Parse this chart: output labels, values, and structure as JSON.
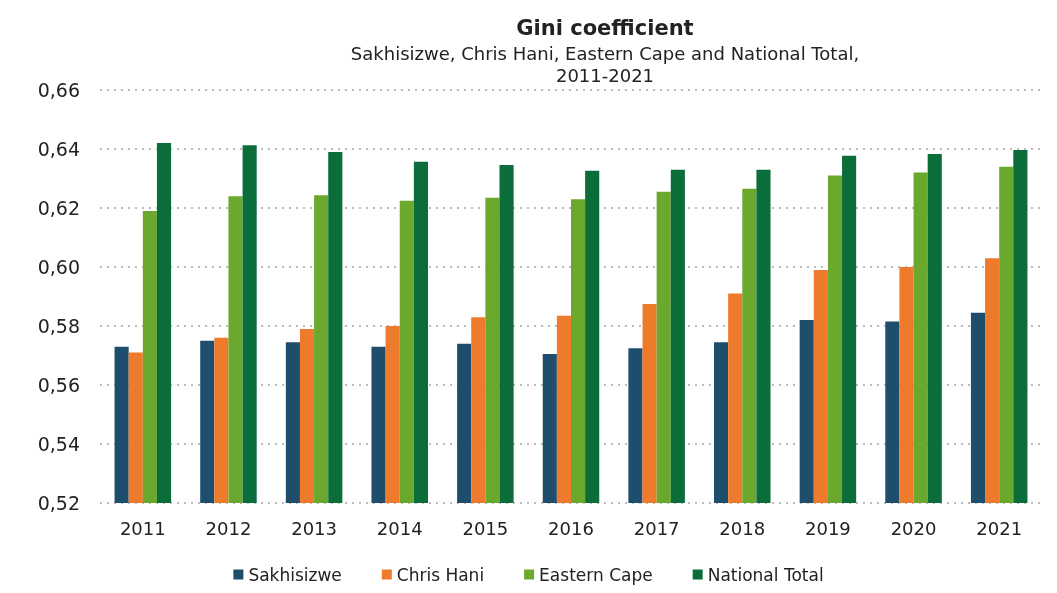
{
  "chart_data": {
    "type": "bar",
    "title": "Gini coefficient",
    "subtitle": "Sakhisizwe, Chris Hani, Eastern Cape and National Total,\n2011-2021",
    "categories": [
      "2011",
      "2012",
      "2013",
      "2014",
      "2015",
      "2016",
      "2017",
      "2018",
      "2019",
      "2020",
      "2021"
    ],
    "series": [
      {
        "name": "Sakhisizwe",
        "color": "#1e4e6c",
        "values": [
          0.573,
          0.575,
          0.5745,
          0.573,
          0.574,
          0.5705,
          0.5725,
          0.5745,
          0.582,
          0.5815,
          0.5845
        ]
      },
      {
        "name": "Chris Hani",
        "color": "#ee7b2c",
        "values": [
          0.571,
          0.576,
          0.579,
          0.58,
          0.583,
          0.5835,
          0.5875,
          0.591,
          0.599,
          0.6,
          0.603
        ]
      },
      {
        "name": "Eastern Cape",
        "color": "#6aa92e",
        "values": [
          0.619,
          0.624,
          0.6243,
          0.6225,
          0.6235,
          0.623,
          0.6255,
          0.6265,
          0.631,
          0.632,
          0.634
        ]
      },
      {
        "name": "National Total",
        "color": "#0a6d3a",
        "values": [
          0.642,
          0.6413,
          0.639,
          0.6357,
          0.6346,
          0.6326,
          0.633,
          0.633,
          0.6377,
          0.6383,
          0.6397
        ]
      }
    ],
    "ylim": [
      0.52,
      0.66
    ],
    "yticks": [
      {
        "value": 0.52,
        "label": "0,52"
      },
      {
        "value": 0.54,
        "label": "0,54"
      },
      {
        "value": 0.56,
        "label": "0,56"
      },
      {
        "value": 0.58,
        "label": "0,58"
      },
      {
        "value": 0.6,
        "label": "0,60"
      },
      {
        "value": 0.62,
        "label": "0,62"
      },
      {
        "value": 0.64,
        "label": "0,64"
      },
      {
        "value": 0.66,
        "label": "0,66"
      }
    ],
    "grid": "y",
    "legend": "bottom"
  }
}
